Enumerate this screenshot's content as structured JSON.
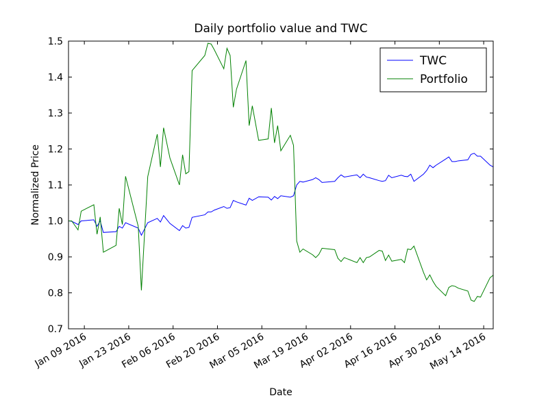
{
  "chart_data": {
    "type": "line",
    "title": "Daily portfolio value and TWC",
    "x_label": "Date",
    "y_label": "Normalized Price",
    "x": [
      "2016-01-04",
      "2016-01-05",
      "2016-01-07",
      "2016-01-08",
      "2016-01-12",
      "2016-01-13",
      "2016-01-14",
      "2016-01-15",
      "2016-01-19",
      "2016-01-20",
      "2016-01-21",
      "2016-01-22",
      "2016-01-26",
      "2016-01-27",
      "2016-01-29",
      "2016-02-01",
      "2016-02-02",
      "2016-02-03",
      "2016-02-05",
      "2016-02-08",
      "2016-02-09",
      "2016-02-10",
      "2016-02-11",
      "2016-02-12",
      "2016-02-16",
      "2016-02-17",
      "2016-02-18",
      "2016-02-19",
      "2016-02-22",
      "2016-02-23",
      "2016-02-24",
      "2016-02-25",
      "2016-02-26",
      "2016-02-29",
      "2016-03-01",
      "2016-03-02",
      "2016-03-04",
      "2016-03-07",
      "2016-03-08",
      "2016-03-09",
      "2016-03-10",
      "2016-03-11",
      "2016-03-14",
      "2016-03-15",
      "2016-03-16",
      "2016-03-17",
      "2016-03-18",
      "2016-03-21",
      "2016-03-22",
      "2016-03-23",
      "2016-03-24",
      "2016-03-28",
      "2016-03-29",
      "2016-03-30",
      "2016-03-31",
      "2016-04-04",
      "2016-04-05",
      "2016-04-06",
      "2016-04-07",
      "2016-04-08",
      "2016-04-11",
      "2016-04-12",
      "2016-04-13",
      "2016-04-14",
      "2016-04-15",
      "2016-04-18",
      "2016-04-19",
      "2016-04-20",
      "2016-04-21",
      "2016-04-22",
      "2016-04-25",
      "2016-04-26",
      "2016-04-27",
      "2016-04-28",
      "2016-04-29",
      "2016-05-02",
      "2016-05-03",
      "2016-05-04",
      "2016-05-05",
      "2016-05-06",
      "2016-05-09",
      "2016-05-10",
      "2016-05-11",
      "2016-05-12",
      "2016-05-13",
      "2016-05-16",
      "2016-05-17"
    ],
    "series": [
      {
        "name": "TWC",
        "color": "#0000ff",
        "values": [
          1.0,
          0.999,
          0.99,
          1.0,
          1.003,
          0.985,
          1.0,
          0.968,
          0.97,
          0.985,
          0.98,
          0.995,
          0.98,
          0.96,
          0.995,
          1.007,
          0.997,
          1.015,
          0.993,
          0.973,
          0.987,
          0.98,
          0.982,
          1.01,
          1.017,
          1.025,
          1.025,
          1.03,
          1.04,
          1.035,
          1.037,
          1.057,
          1.053,
          1.044,
          1.063,
          1.057,
          1.067,
          1.066,
          1.058,
          1.068,
          1.062,
          1.07,
          1.066,
          1.07,
          1.1,
          1.11,
          1.108,
          1.115,
          1.12,
          1.115,
          1.107,
          1.11,
          1.12,
          1.128,
          1.122,
          1.128,
          1.12,
          1.13,
          1.122,
          1.12,
          1.112,
          1.11,
          1.112,
          1.127,
          1.12,
          1.127,
          1.124,
          1.123,
          1.13,
          1.11,
          1.13,
          1.14,
          1.155,
          1.148,
          1.155,
          1.172,
          1.178,
          1.165,
          1.165,
          1.167,
          1.17,
          1.185,
          1.188,
          1.18,
          1.18,
          1.155,
          1.15
        ]
      },
      {
        "name": "Portfolio",
        "color": "#008000",
        "values": [
          1.0,
          1.0,
          0.975,
          1.027,
          1.045,
          0.963,
          1.011,
          0.913,
          0.932,
          1.035,
          0.99,
          1.124,
          0.985,
          0.807,
          1.123,
          1.241,
          1.15,
          1.259,
          1.175,
          1.1,
          1.184,
          1.131,
          1.137,
          1.418,
          1.46,
          1.494,
          1.492,
          1.476,
          1.423,
          1.48,
          1.46,
          1.316,
          1.366,
          1.446,
          1.265,
          1.32,
          1.224,
          1.228,
          1.314,
          1.217,
          1.265,
          1.195,
          1.238,
          1.21,
          0.944,
          0.913,
          0.922,
          0.906,
          0.898,
          0.907,
          0.924,
          0.92,
          0.896,
          0.887,
          0.898,
          0.884,
          0.898,
          0.884,
          0.898,
          0.9,
          0.918,
          0.916,
          0.89,
          0.905,
          0.888,
          0.893,
          0.884,
          0.922,
          0.92,
          0.93,
          0.857,
          0.836,
          0.85,
          0.832,
          0.818,
          0.792,
          0.815,
          0.82,
          0.818,
          0.813,
          0.805,
          0.78,
          0.776,
          0.79,
          0.788,
          0.842,
          0.849
        ]
      }
    ],
    "xlim": [
      "2016-01-04",
      "2016-05-17"
    ],
    "xticks": [
      {
        "value": "2016-01-09",
        "label": "Jan 09 2016"
      },
      {
        "value": "2016-01-23",
        "label": "Jan 23 2016"
      },
      {
        "value": "2016-02-06",
        "label": "Feb 06 2016"
      },
      {
        "value": "2016-02-20",
        "label": "Feb 20 2016"
      },
      {
        "value": "2016-03-05",
        "label": "Mar 05 2016"
      },
      {
        "value": "2016-03-19",
        "label": "Mar 19 2016"
      },
      {
        "value": "2016-04-02",
        "label": "Apr 02 2016"
      },
      {
        "value": "2016-04-16",
        "label": "Apr 16 2016"
      },
      {
        "value": "2016-04-30",
        "label": "Apr 30 2016"
      },
      {
        "value": "2016-05-14",
        "label": "May 14 2016"
      }
    ],
    "ylim": [
      0.7,
      1.5
    ],
    "yticks": [
      0.7,
      0.8,
      0.9,
      {
        "value": 1.0,
        "label": "1.0"
      },
      1.1,
      1.2,
      1.3,
      1.4,
      1.5
    ],
    "legend": "upper right",
    "grid": false
  }
}
